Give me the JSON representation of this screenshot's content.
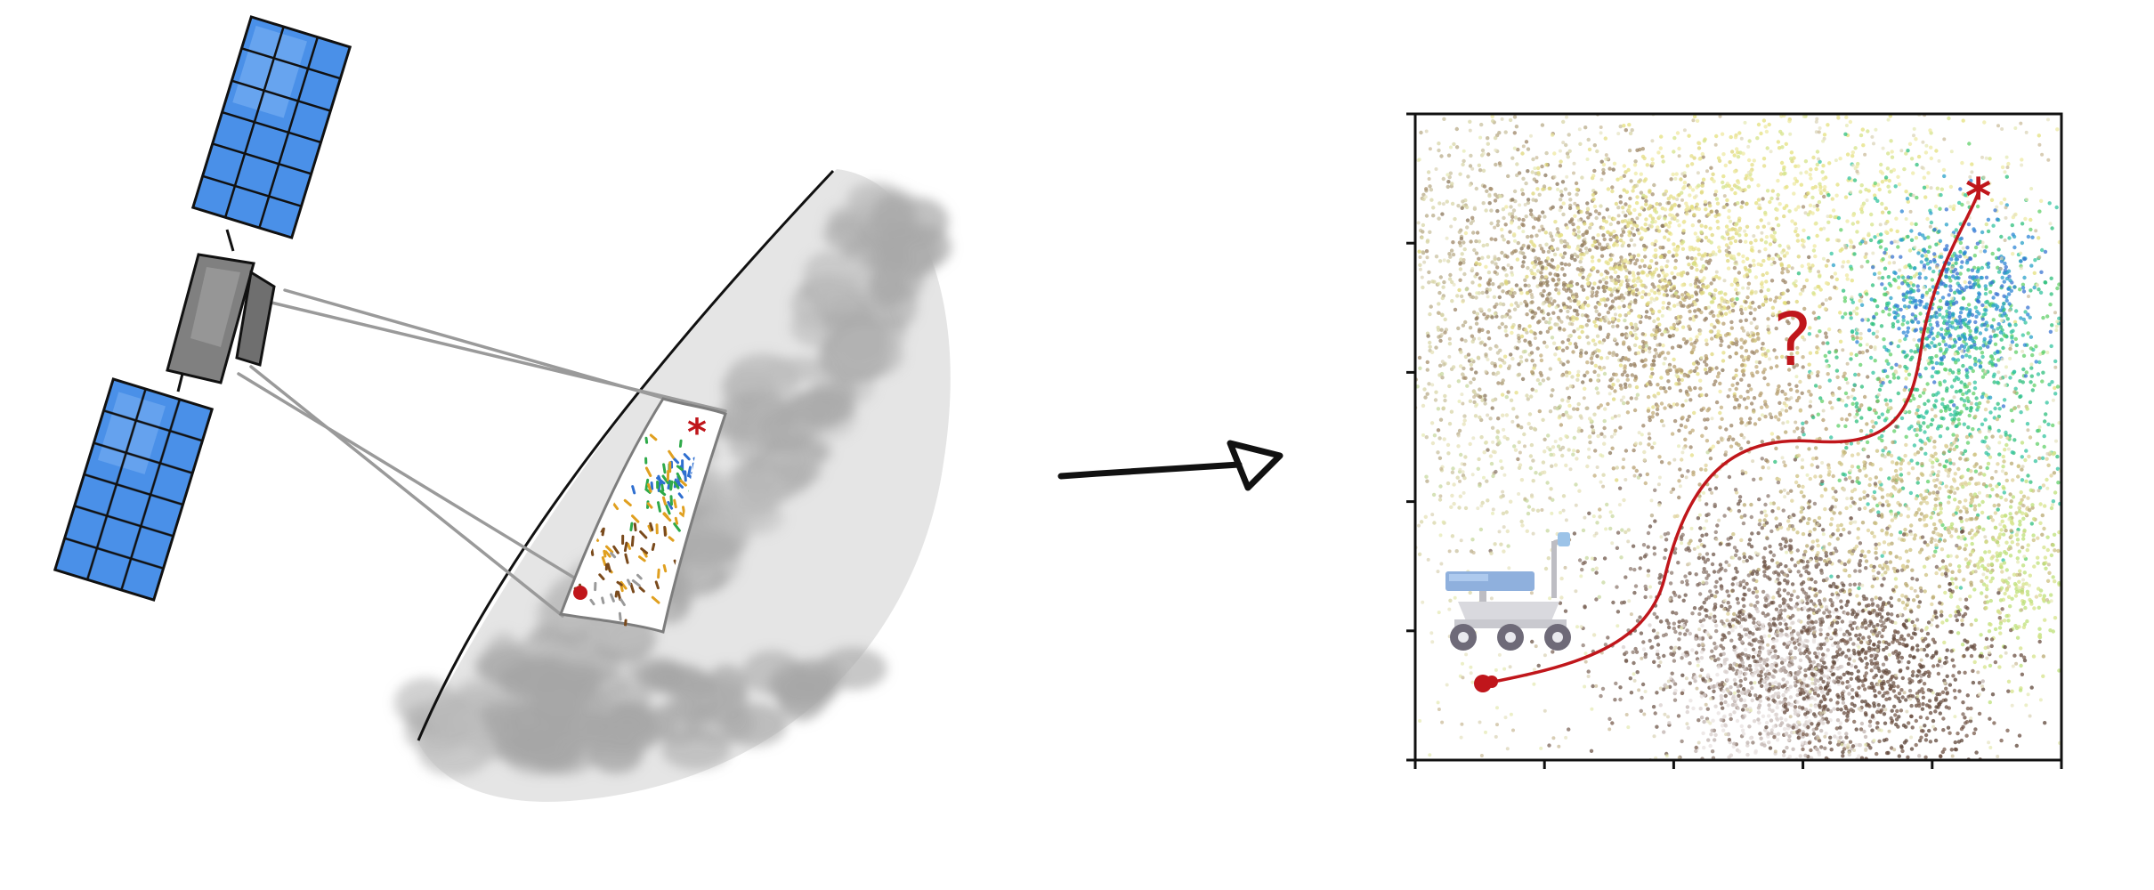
{
  "plot": {
    "question_label": "?",
    "target_marker": "*",
    "x_tick_count": 6,
    "y_tick_count": 6
  },
  "field": {
    "target_marker": "*"
  },
  "colors": {
    "panel_blue": "#4a90e8",
    "panel_dark_blue": "#2f6fd0",
    "satellite_body": "#7a7a7a",
    "beam_gray": "#9a9a9a",
    "surface_gray": "#c8c8c8",
    "surface_shadow": "#a9a9a9",
    "route_red": "#c0161b",
    "arrow_black": "#111111",
    "rover_body": "#d9d9de",
    "rover_panel": "#8fb0dd",
    "rover_wheel": "#6e6a78"
  },
  "icons": {
    "satellite": "satellite-icon",
    "rover": "rover-icon",
    "arrow": "arrow-right-icon",
    "target": "asterisk-icon",
    "start": "start-dot-icon"
  }
}
